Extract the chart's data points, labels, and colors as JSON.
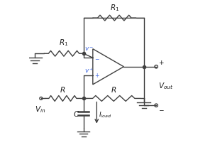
{
  "title": "",
  "fig_width": 2.79,
  "fig_height": 2.11,
  "dpi": 100,
  "bg_color": "#ffffff",
  "line_color": "#404040",
  "label_color_blue": "#4169E1",
  "label_color_black": "#1a1a1a",
  "lw": 1.0
}
